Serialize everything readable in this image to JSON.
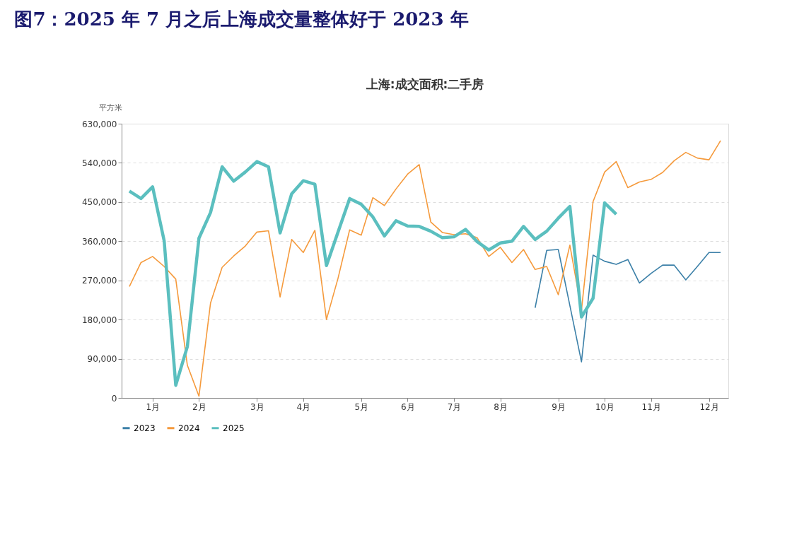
{
  "chart_data": {
    "type": "line",
    "title": "图7：2025 年 7 月之后上海成交量整体好于 2023 年",
    "subtitle": "上海:成交面积:二手房",
    "ylabel": "平方米",
    "categories": [
      null,
      null,
      "1月",
      null,
      null,
      null,
      "2月",
      null,
      null,
      null,
      null,
      "3月",
      null,
      null,
      null,
      "4月",
      null,
      null,
      null,
      null,
      "5月",
      null,
      null,
      null,
      "6月",
      null,
      null,
      null,
      "7月",
      null,
      null,
      null,
      "8月",
      null,
      null,
      null,
      null,
      "9月",
      null,
      null,
      null,
      "10月",
      null,
      null,
      null,
      "11月",
      null,
      null,
      null,
      null,
      "12月",
      null
    ],
    "ylim": [
      0,
      630000
    ],
    "yticks": [
      {
        "value": 0,
        "label": "0"
      },
      {
        "value": 90000,
        "label": "90,000"
      },
      {
        "value": 180000,
        "label": "180,000"
      },
      {
        "value": 270000,
        "label": "270,000"
      },
      {
        "value": 360000,
        "label": "360,000"
      },
      {
        "value": 450000,
        "label": "450,000"
      },
      {
        "value": 540000,
        "label": "540,000"
      },
      {
        "value": 630000,
        "label": "630,000"
      }
    ],
    "grid": "y",
    "legend": "bottom",
    "series": [
      {
        "name": "2023",
        "color": "#3c80a8",
        "values": [
          null,
          null,
          null,
          null,
          null,
          null,
          null,
          null,
          null,
          null,
          null,
          null,
          null,
          null,
          null,
          null,
          null,
          null,
          null,
          null,
          null,
          null,
          null,
          null,
          null,
          null,
          null,
          null,
          null,
          null,
          null,
          null,
          null,
          null,
          null,
          207000,
          339000,
          341000,
          212000,
          83000,
          328000,
          314000,
          307000,
          318000,
          264000,
          286000,
          305000,
          305000,
          271000,
          302000,
          334000,
          334000
        ]
      },
      {
        "name": "2024",
        "color": "#f59a3c",
        "values": [
          256000,
          311000,
          325000,
          302000,
          273000,
          75000,
          4000,
          218000,
          300000,
          326000,
          349000,
          381000,
          384000,
          232000,
          364000,
          334000,
          385000,
          180000,
          275000,
          386000,
          374000,
          460000,
          442000,
          480000,
          514000,
          536000,
          404000,
          380000,
          375000,
          377000,
          368000,
          325000,
          346000,
          311000,
          341000,
          295000,
          302000,
          237000,
          351000,
          202000,
          451000,
          519000,
          543000,
          483000,
          496000,
          502000,
          518000,
          545000,
          564000,
          551000,
          547000,
          591000
        ]
      },
      {
        "name": "2025",
        "color": "#5bbfbf",
        "values": [
          475000,
          458000,
          485000,
          361000,
          29000,
          118000,
          367000,
          426000,
          531000,
          498000,
          519000,
          543000,
          531000,
          379000,
          469000,
          499000,
          491000,
          304000,
          381000,
          458000,
          445000,
          416000,
          372000,
          407000,
          395000,
          394000,
          383000,
          368000,
          370000,
          387000,
          359000,
          340000,
          356000,
          360000,
          394000,
          364000,
          383000,
          413000,
          440000,
          186000,
          229000,
          448000,
          422000,
          null,
          null,
          null,
          null,
          null,
          null,
          null,
          null,
          null
        ]
      }
    ]
  }
}
